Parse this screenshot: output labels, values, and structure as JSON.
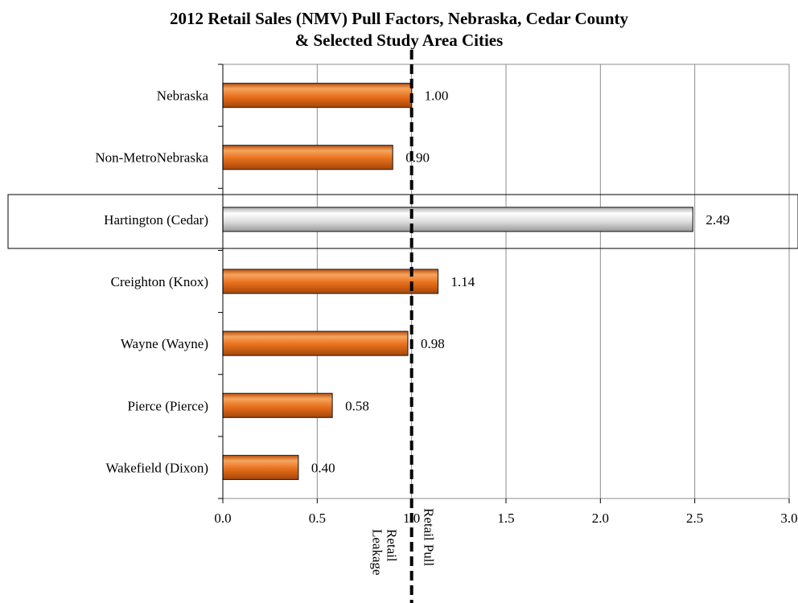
{
  "chart_data": {
    "type": "bar",
    "orientation": "horizontal",
    "title_line1": "2012 Retail Sales (NMV) Pull Factors, Nebraska, Cedar County",
    "title_line2": "& Selected Study Area Cities",
    "categories": [
      "Nebraska",
      "Non-MetroNebraska",
      "Hartington (Cedar)",
      "Creighton (Knox)",
      "Wayne (Wayne)",
      "Pierce (Pierce)",
      "Wakefield (Dixon)"
    ],
    "values": [
      1.0,
      0.9,
      2.49,
      1.14,
      0.98,
      0.58,
      0.4
    ],
    "value_labels": [
      "1.00",
      "0.90",
      "2.49",
      "1.14",
      "0.98",
      "0.58",
      "0.40"
    ],
    "highlighted_category": "Hartington (Cedar)",
    "xlim": [
      0,
      3
    ],
    "x_ticks": [
      0,
      0.5,
      1,
      1.5,
      2,
      2.5,
      3
    ],
    "x_tick_labels": [
      "0.0",
      "0.5",
      "1.0",
      "1.5",
      "2.0",
      "2.5",
      "3.0"
    ],
    "reference_line": {
      "value": 1.0,
      "style": "dashed",
      "label_left_line1": "Retail",
      "label_left_line2": "Leakage",
      "label_right": "Retail Pull"
    },
    "grid": "vertical",
    "legend": "none",
    "colors": {
      "bar": "#e8701c",
      "bar_light": "#f6a55e",
      "bar_highlight": "#d6d6d6",
      "bar_highlight_light": "#ffffff",
      "grid": "#8c8c8c",
      "reference_line": "#000000"
    }
  }
}
